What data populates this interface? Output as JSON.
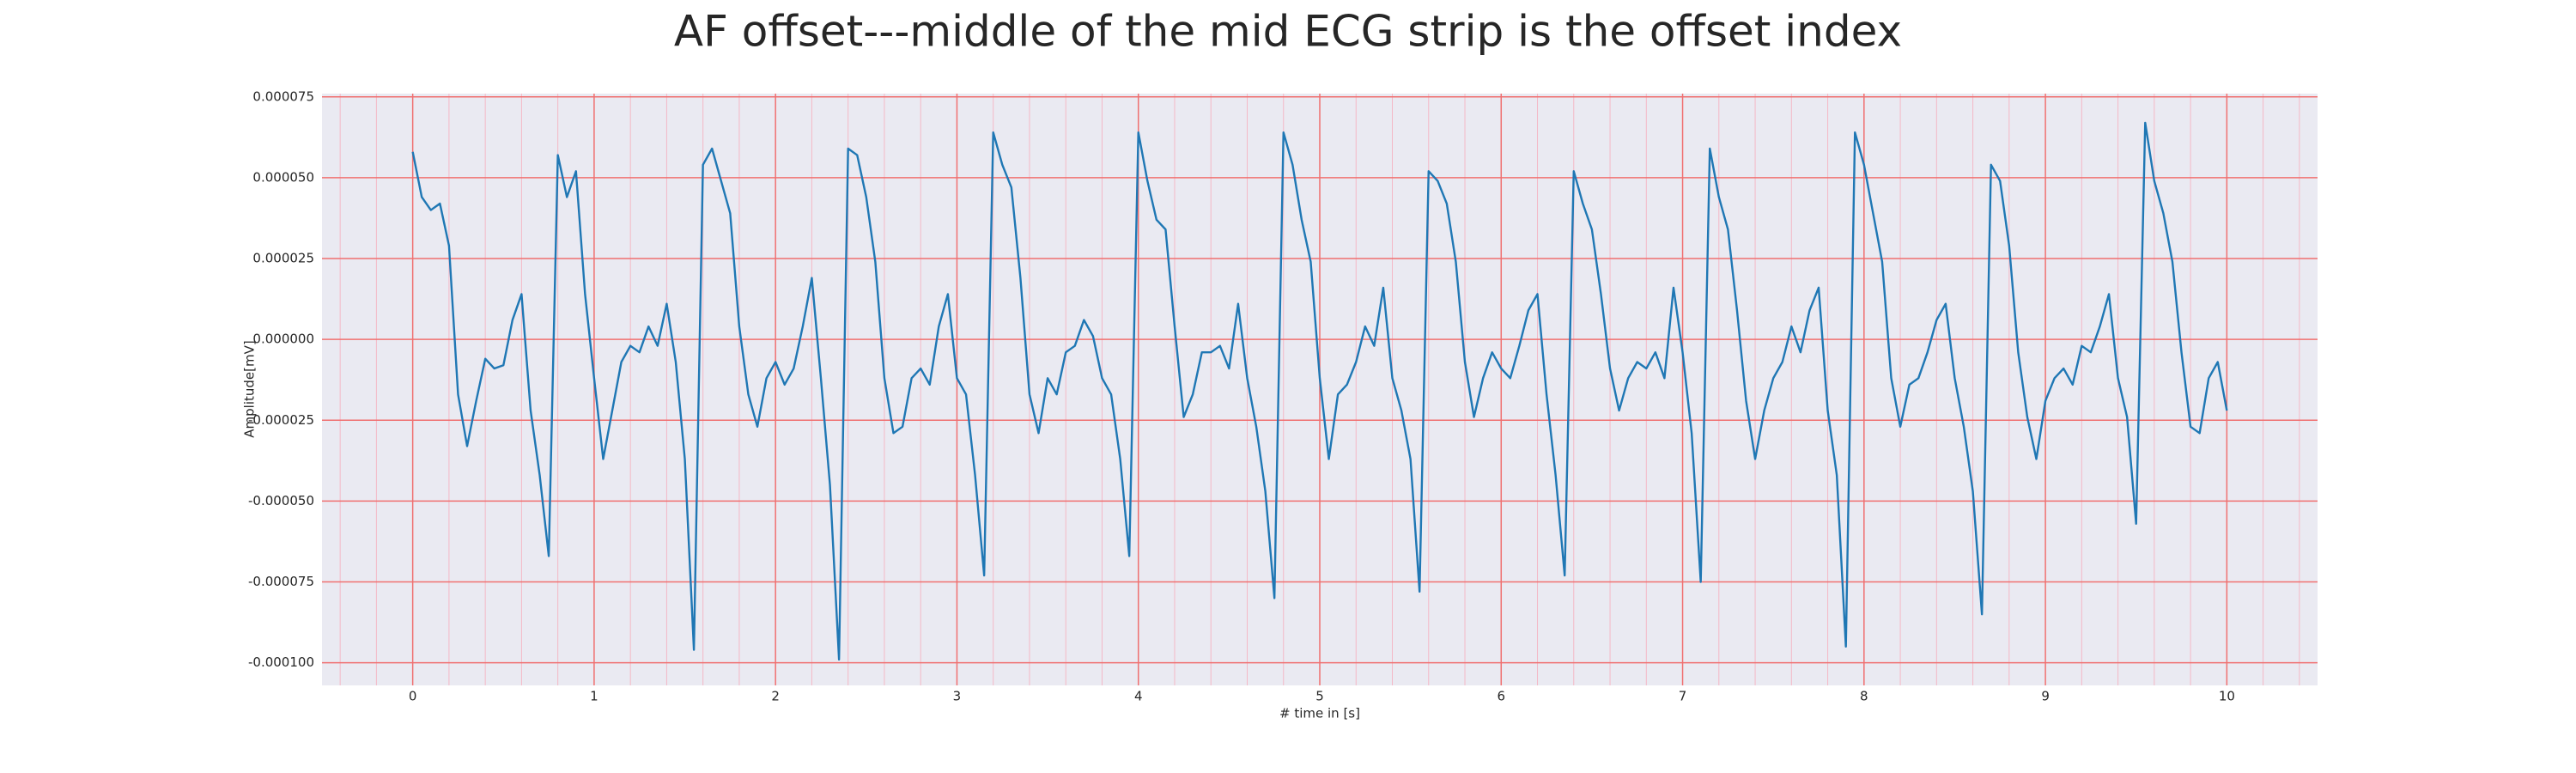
{
  "chart_data": {
    "type": "line",
    "title": "AF offset---middle of the mid ECG strip is the offset index",
    "xlabel": "# time in [s]",
    "ylabel": "Amplitude[mV]",
    "color": "#1f77b4",
    "grid": true,
    "minor_grid": true,
    "xlim": [
      -0.5,
      10.5
    ],
    "ylim": [
      -0.000107,
      7.6e-05
    ],
    "xticks": [
      0,
      1,
      2,
      3,
      4,
      5,
      6,
      7,
      8,
      9,
      10
    ],
    "yticks": [
      {
        "value": 7.5e-05,
        "label": "0.000075"
      },
      {
        "value": 5e-05,
        "label": "0.000050"
      },
      {
        "value": 2.5e-05,
        "label": "0.000025"
      },
      {
        "value": 0,
        "label": "0.000000"
      },
      {
        "value": -2.5e-05,
        "label": "-0.000025"
      },
      {
        "value": -5e-05,
        "label": "-0.000050"
      },
      {
        "value": -7.5e-05,
        "label": "-0.000075"
      },
      {
        "value": -0.0001,
        "label": "-0.000100"
      }
    ],
    "x": [
      0,
      0.05,
      0.1,
      0.15,
      0.2,
      0.25,
      0.3,
      0.35,
      0.4,
      0.45,
      0.5,
      0.55,
      0.6,
      0.65,
      0.7,
      0.75,
      0.8,
      0.85,
      0.9,
      0.95,
      1,
      1.05,
      1.1,
      1.15,
      1.2,
      1.25,
      1.3,
      1.35,
      1.4,
      1.45,
      1.5,
      1.55,
      1.6,
      1.65,
      1.7,
      1.75,
      1.8,
      1.85,
      1.9,
      1.95,
      2,
      2.05,
      2.1,
      2.15,
      2.2,
      2.25,
      2.3,
      2.35,
      2.4,
      2.45,
      2.5,
      2.55,
      2.6,
      2.65,
      2.7,
      2.75,
      2.8,
      2.85,
      2.9,
      2.95,
      3,
      3.05,
      3.1,
      3.15,
      3.2,
      3.25,
      3.3,
      3.35,
      3.4,
      3.45,
      3.5,
      3.55,
      3.6,
      3.65,
      3.7,
      3.75,
      3.8,
      3.85,
      3.9,
      3.95,
      4,
      4.05,
      4.1,
      4.15,
      4.2,
      4.25,
      4.3,
      4.35,
      4.4,
      4.45,
      4.5,
      4.55,
      4.6,
      4.65,
      4.7,
      4.75,
      4.8,
      4.85,
      4.9,
      4.95,
      5,
      5.05,
      5.1,
      5.15,
      5.2,
      5.25,
      5.3,
      5.35,
      5.4,
      5.45,
      5.5,
      5.55,
      5.6,
      5.65,
      5.7,
      5.75,
      5.8,
      5.85,
      5.9,
      5.95,
      6,
      6.05,
      6.1,
      6.15,
      6.2,
      6.25,
      6.3,
      6.35,
      6.4,
      6.45,
      6.5,
      6.55,
      6.6,
      6.65,
      6.7,
      6.75,
      6.8,
      6.85,
      6.9,
      6.95,
      7,
      7.05,
      7.1,
      7.15,
      7.2,
      7.25,
      7.3,
      7.35,
      7.4,
      7.45,
      7.5,
      7.55,
      7.6,
      7.65,
      7.7,
      7.75,
      7.8,
      7.85,
      7.9,
      7.95,
      8,
      8.05,
      8.1,
      8.15,
      8.2,
      8.25,
      8.3,
      8.35,
      8.4,
      8.45,
      8.5,
      8.55,
      8.6,
      8.65,
      8.7,
      8.75,
      8.8,
      8.85,
      8.9,
      8.95,
      9,
      9.05,
      9.1,
      9.15,
      9.2,
      9.25,
      9.3,
      9.35,
      9.4,
      9.45,
      9.5,
      9.55,
      9.6,
      9.65,
      9.7,
      9.75,
      9.8,
      9.85,
      9.9,
      9.95,
      10
    ],
    "values": [
      5.8e-05,
      4.4e-05,
      4e-05,
      4.2e-05,
      2.9e-05,
      -1.7e-05,
      -3.3e-05,
      -1.9e-05,
      -6e-06,
      -9e-06,
      -8e-06,
      6e-06,
      1.4e-05,
      -2.2e-05,
      -4.2e-05,
      -6.7e-05,
      5.7e-05,
      4.4e-05,
      5.2e-05,
      1.4e-05,
      -1.2e-05,
      -3.7e-05,
      -2.2e-05,
      -7e-06,
      -2e-06,
      -4e-06,
      4e-06,
      -2e-06,
      1.1e-05,
      -7e-06,
      -3.7e-05,
      -9.6e-05,
      5.4e-05,
      5.9e-05,
      4.9e-05,
      3.9e-05,
      4e-06,
      -1.7e-05,
      -2.7e-05,
      -1.2e-05,
      -7e-06,
      -1.4e-05,
      -9e-06,
      4e-06,
      1.9e-05,
      -1.2e-05,
      -4.5e-05,
      -9.9e-05,
      5.9e-05,
      5.7e-05,
      4.4e-05,
      2.4e-05,
      -1.2e-05,
      -2.9e-05,
      -2.7e-05,
      -1.2e-05,
      -9e-06,
      -1.4e-05,
      4e-06,
      1.4e-05,
      -1.2e-05,
      -1.7e-05,
      -4.2e-05,
      -7.3e-05,
      6.4e-05,
      5.4e-05,
      4.7e-05,
      1.9e-05,
      -1.7e-05,
      -2.9e-05,
      -1.2e-05,
      -1.7e-05,
      -4e-06,
      -2e-06,
      6e-06,
      1e-06,
      -1.2e-05,
      -1.7e-05,
      -3.7e-05,
      -6.7e-05,
      6.4e-05,
      4.9e-05,
      3.7e-05,
      3.4e-05,
      4e-06,
      -2.4e-05,
      -1.7e-05,
      -4e-06,
      -4e-06,
      -2e-06,
      -9e-06,
      1.1e-05,
      -1.2e-05,
      -2.7e-05,
      -4.7e-05,
      -8e-05,
      6.4e-05,
      5.4e-05,
      3.7e-05,
      2.4e-05,
      -1.2e-05,
      -3.7e-05,
      -1.7e-05,
      -1.4e-05,
      -7e-06,
      4e-06,
      -2e-06,
      1.6e-05,
      -1.2e-05,
      -2.2e-05,
      -3.7e-05,
      -7.8e-05,
      5.2e-05,
      4.9e-05,
      4.2e-05,
      2.4e-05,
      -7e-06,
      -2.4e-05,
      -1.2e-05,
      -4e-06,
      -9e-06,
      -1.2e-05,
      -2e-06,
      9e-06,
      1.4e-05,
      -1.7e-05,
      -4.2e-05,
      -7.3e-05,
      5.2e-05,
      4.2e-05,
      3.4e-05,
      1.4e-05,
      -9e-06,
      -2.2e-05,
      -1.2e-05,
      -7e-06,
      -9e-06,
      -4e-06,
      -1.2e-05,
      1.6e-05,
      -4e-06,
      -2.9e-05,
      -7.5e-05,
      5.9e-05,
      4.4e-05,
      3.4e-05,
      9e-06,
      -1.9e-05,
      -3.7e-05,
      -2.2e-05,
      -1.2e-05,
      -7e-06,
      4e-06,
      -4e-06,
      9e-06,
      1.6e-05,
      -2.2e-05,
      -4.2e-05,
      -9.5e-05,
      6.4e-05,
      5.4e-05,
      3.9e-05,
      2.4e-05,
      -1.2e-05,
      -2.7e-05,
      -1.4e-05,
      -1.2e-05,
      -4e-06,
      6e-06,
      1.1e-05,
      -1.2e-05,
      -2.7e-05,
      -4.7e-05,
      -8.5e-05,
      5.4e-05,
      4.9e-05,
      2.9e-05,
      -4e-06,
      -2.4e-05,
      -3.7e-05,
      -1.9e-05,
      -1.2e-05,
      -9e-06,
      -1.4e-05,
      -2e-06,
      -4e-06,
      4e-06,
      1.4e-05,
      -1.2e-05,
      -2.4e-05,
      -5.7e-05,
      6.7e-05,
      4.9e-05,
      3.9e-05,
      2.4e-05,
      -4e-06,
      -2.7e-05,
      -2.9e-05,
      -1.2e-05,
      -7e-06,
      -2.2e-05
    ]
  }
}
